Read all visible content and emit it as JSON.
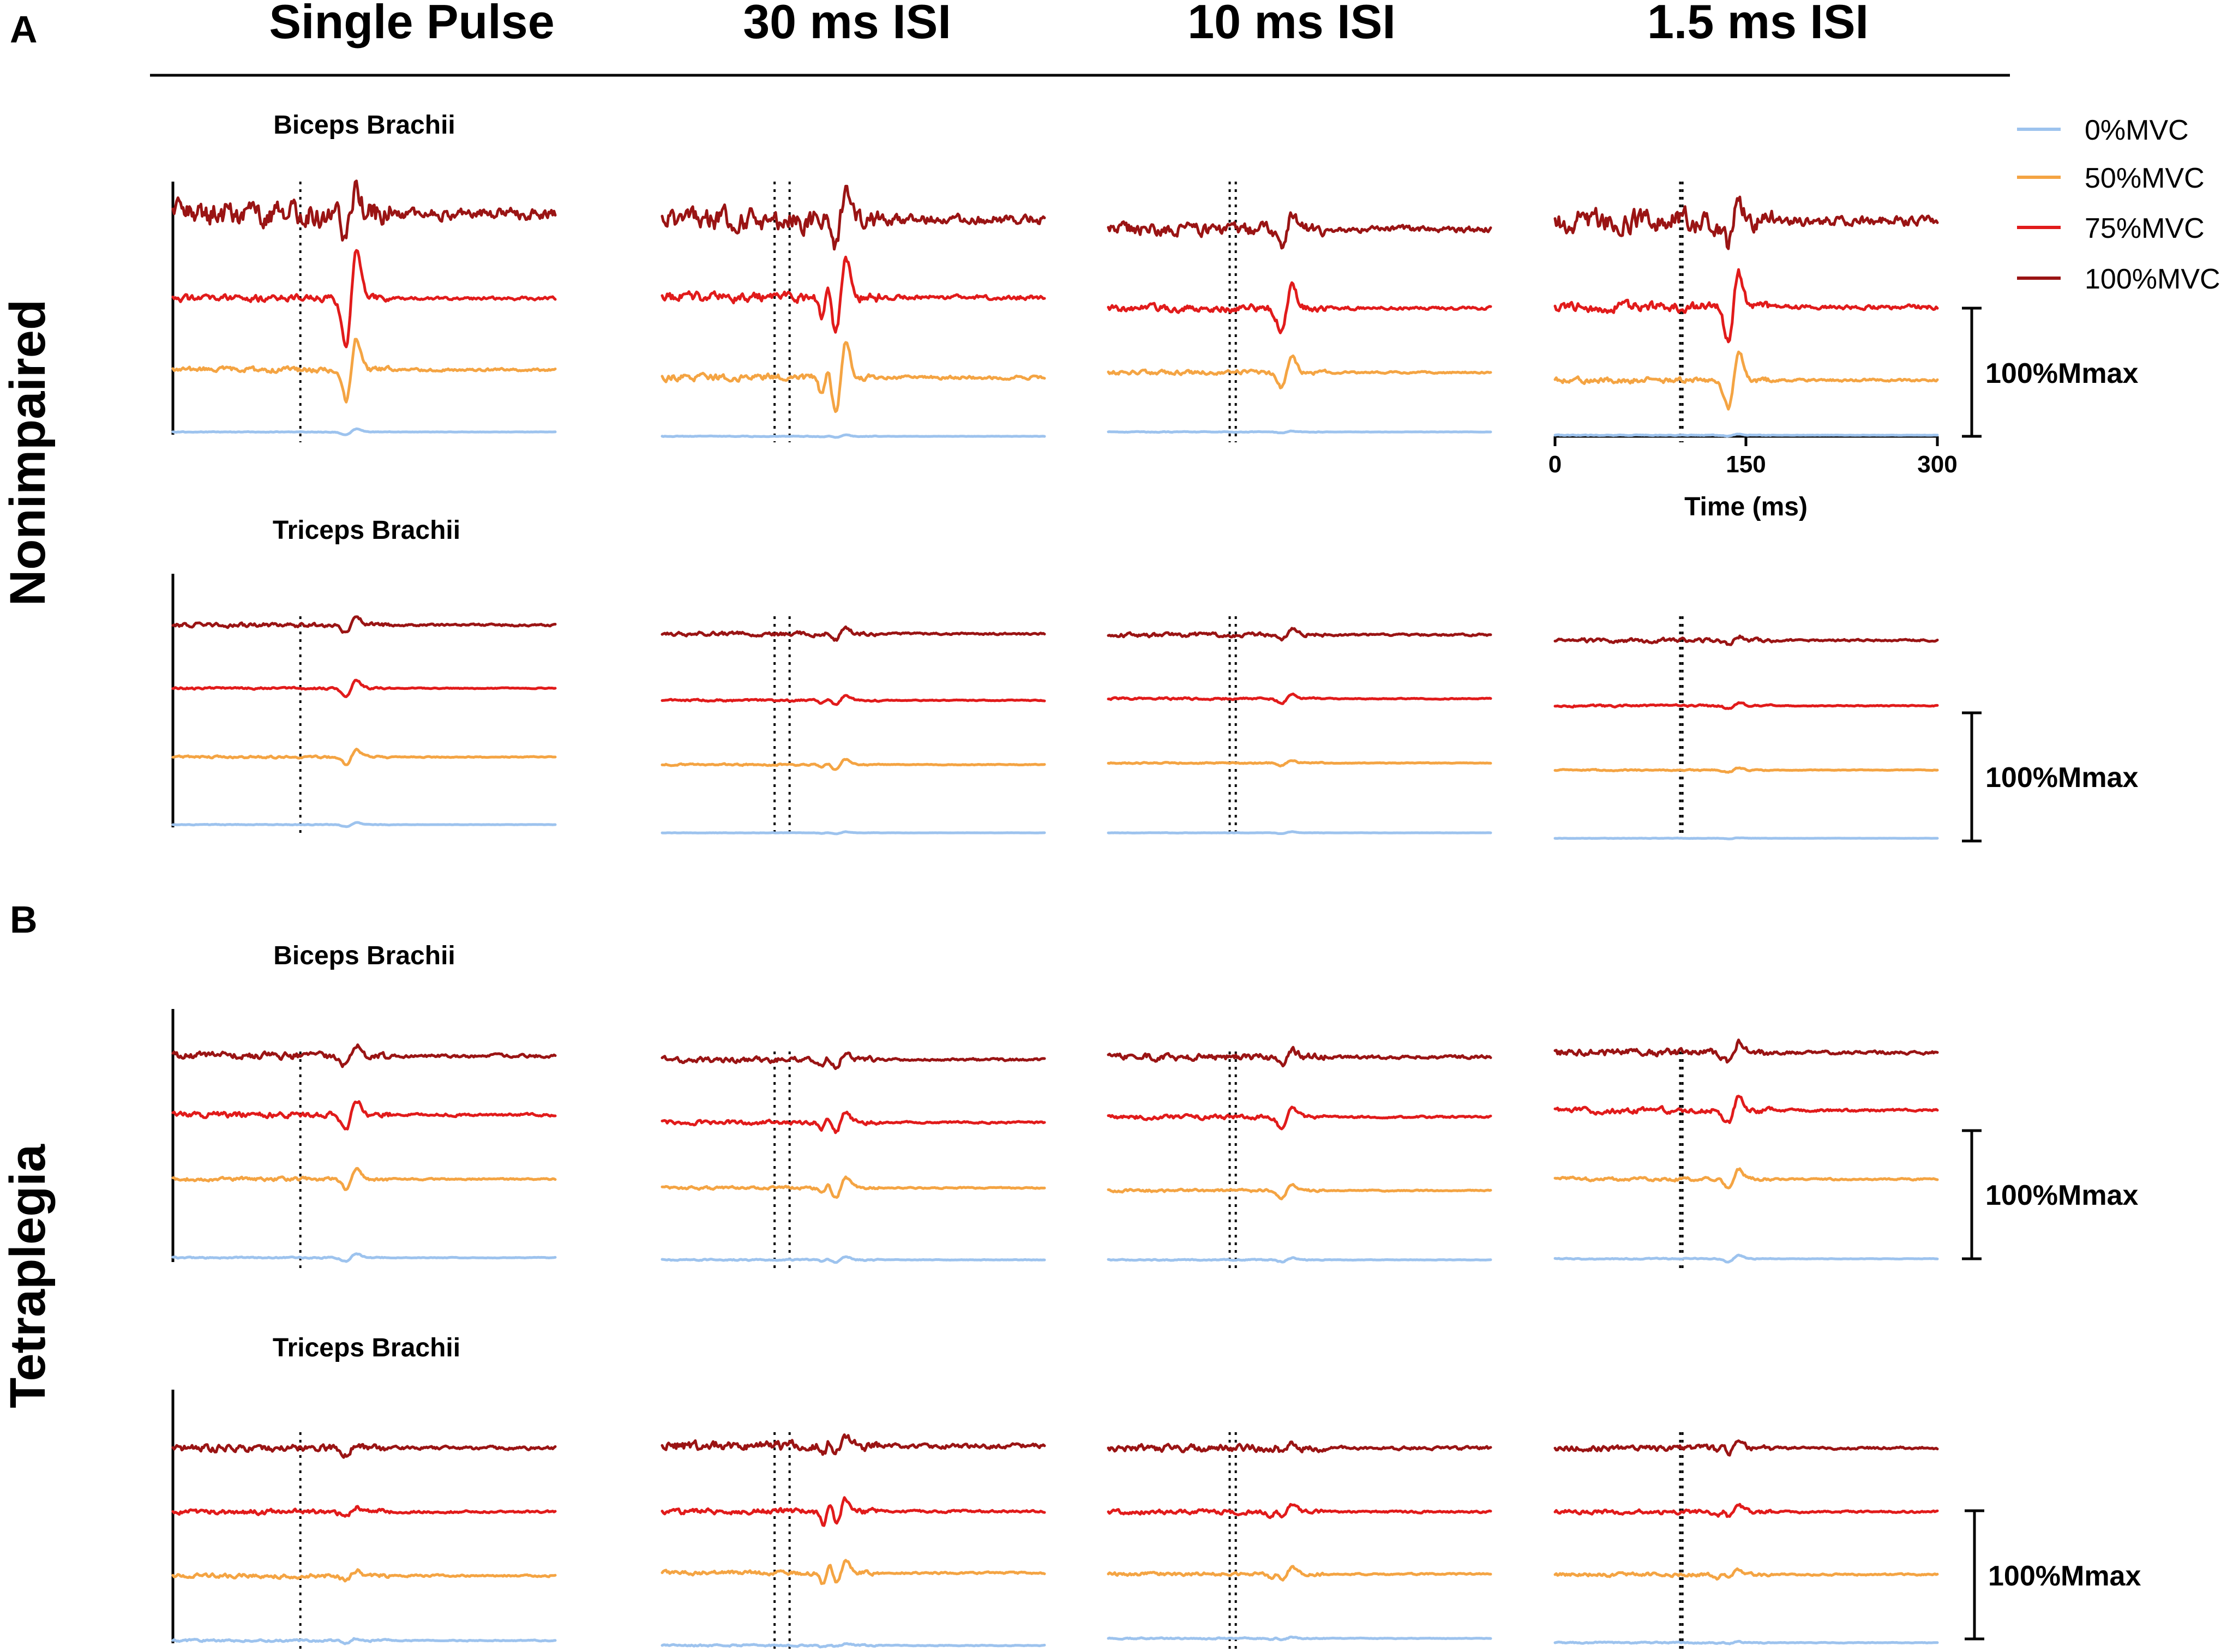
{
  "panels": [
    {
      "letter": "A",
      "group": "Nonimpaired"
    },
    {
      "letter": "B",
      "group": "Tetraplegia"
    }
  ],
  "columns": [
    "Single Pulse",
    "30 ms ISI",
    "10 ms ISI",
    "1.5 ms ISI"
  ],
  "muscles": [
    "Biceps Brachii",
    "Triceps Brachii"
  ],
  "scale_bar_label": "100%Mmax",
  "legend": [
    {
      "label": "0%MVC",
      "color": "#9DC3EE"
    },
    {
      "label": "50%MVC",
      "color": "#F4A443"
    },
    {
      "label": "75%MVC",
      "color": "#E11B1B"
    },
    {
      "label": "100%MVC",
      "color": "#9A1414"
    }
  ],
  "chart_data": {
    "type": "line",
    "description_values": "EMG traces, amplitude relative to Mmax",
    "xlabel": "Time (ms)",
    "xlim": [
      0,
      300
    ],
    "xticks": [
      0,
      150,
      300
    ],
    "stimulus_time_ms": 100,
    "conditioning_isi_ms": [
      0,
      30,
      10,
      1.5
    ],
    "series": [
      "0%MVC",
      "50%MVC",
      "75%MVC",
      "100%MVC"
    ]
  }
}
